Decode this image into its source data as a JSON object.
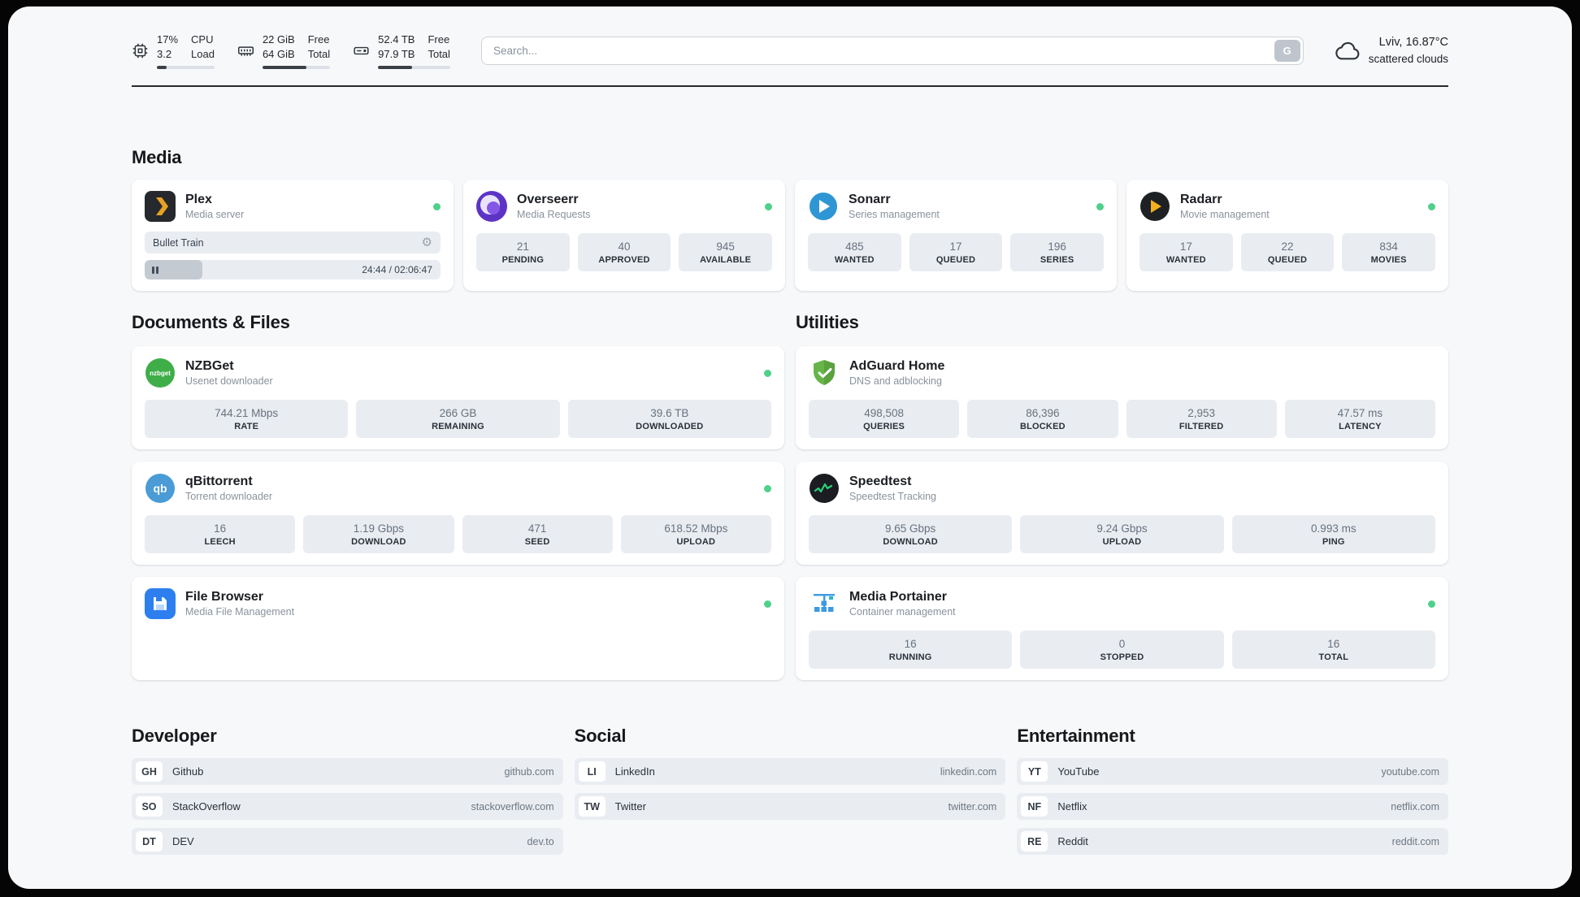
{
  "header": {
    "cpu": {
      "value": "17%",
      "sub": "3.2",
      "label_top": "CPU",
      "label_bottom": "Load",
      "progress": 17
    },
    "ram": {
      "value": "22 GiB",
      "sub": "64 GiB",
      "label_top": "Free",
      "label_bottom": "Total",
      "progress": 65
    },
    "disk": {
      "value": "52.4 TB",
      "sub": "97.9 TB",
      "label_top": "Free",
      "label_bottom": "Total",
      "progress": 47
    },
    "search": {
      "placeholder": "Search...",
      "button_label": "G"
    },
    "weather": {
      "location": "Lviv, 16.87°C",
      "condition": "scattered clouds"
    }
  },
  "sections": {
    "media": "Media",
    "documents": "Documents & Files",
    "utilities": "Utilities",
    "developer": "Developer",
    "social": "Social",
    "entertainment": "Entertainment"
  },
  "apps": {
    "plex": {
      "name": "Plex",
      "description": "Media server",
      "now_playing": "Bullet Train",
      "time_display": "24:44 / 02:06:47",
      "progress": 19.5
    },
    "overseerr": {
      "name": "Overseerr",
      "description": "Media Requests",
      "stats": [
        {
          "value": "21",
          "label": "PENDING"
        },
        {
          "value": "40",
          "label": "APPROVED"
        },
        {
          "value": "945",
          "label": "AVAILABLE"
        }
      ]
    },
    "sonarr": {
      "name": "Sonarr",
      "description": "Series management",
      "stats": [
        {
          "value": "485",
          "label": "WANTED"
        },
        {
          "value": "17",
          "label": "QUEUED"
        },
        {
          "value": "196",
          "label": "SERIES"
        }
      ]
    },
    "radarr": {
      "name": "Radarr",
      "description": "Movie management",
      "stats": [
        {
          "value": "17",
          "label": "WANTED"
        },
        {
          "value": "22",
          "label": "QUEUED"
        },
        {
          "value": "834",
          "label": "MOVIES"
        }
      ]
    },
    "nzbget": {
      "name": "NZBGet",
      "description": "Usenet downloader",
      "stats": [
        {
          "value": "744.21 Mbps",
          "label": "RATE"
        },
        {
          "value": "266 GB",
          "label": "REMAINING"
        },
        {
          "value": "39.6 TB",
          "label": "DOWNLOADED"
        }
      ]
    },
    "qbittorrent": {
      "name": "qBittorrent",
      "description": "Torrent downloader",
      "stats": [
        {
          "value": "16",
          "label": "LEECH"
        },
        {
          "value": "1.19 Gbps",
          "label": "DOWNLOAD"
        },
        {
          "value": "471",
          "label": "SEED"
        },
        {
          "value": "618.52 Mbps",
          "label": "UPLOAD"
        }
      ]
    },
    "filebrowser": {
      "name": "File Browser",
      "description": "Media File Management"
    },
    "adguard": {
      "name": "AdGuard Home",
      "description": "DNS and adblocking",
      "stats": [
        {
          "value": "498,508",
          "label": "QUERIES"
        },
        {
          "value": "86,396",
          "label": "BLOCKED"
        },
        {
          "value": "2,953",
          "label": "FILTERED"
        },
        {
          "value": "47.57 ms",
          "label": "LATENCY"
        }
      ]
    },
    "speedtest": {
      "name": "Speedtest",
      "description": "Speedtest Tracking",
      "stats": [
        {
          "value": "9.65 Gbps",
          "label": "DOWNLOAD"
        },
        {
          "value": "9.24 Gbps",
          "label": "UPLOAD"
        },
        {
          "value": "0.993 ms",
          "label": "PING"
        }
      ]
    },
    "portainer": {
      "name": "Media Portainer",
      "description": "Container management",
      "stats": [
        {
          "value": "16",
          "label": "RUNNING"
        },
        {
          "value": "0",
          "label": "STOPPED"
        },
        {
          "value": "16",
          "label": "TOTAL"
        }
      ]
    }
  },
  "links": {
    "developer": [
      {
        "abbr": "GH",
        "name": "Github",
        "url": "github.com"
      },
      {
        "abbr": "SO",
        "name": "StackOverflow",
        "url": "stackoverflow.com"
      },
      {
        "abbr": "DT",
        "name": "DEV",
        "url": "dev.to"
      }
    ],
    "social": [
      {
        "abbr": "LI",
        "name": "LinkedIn",
        "url": "linkedin.com"
      },
      {
        "abbr": "TW",
        "name": "Twitter",
        "url": "twitter.com"
      }
    ],
    "entertainment": [
      {
        "abbr": "YT",
        "name": "YouTube",
        "url": "youtube.com"
      },
      {
        "abbr": "NF",
        "name": "Netflix",
        "url": "netflix.com"
      },
      {
        "abbr": "RE",
        "name": "Reddit",
        "url": "reddit.com"
      }
    ]
  },
  "colors": {
    "status_online": "#4fd18b",
    "progress_fill": "#3a4046"
  }
}
